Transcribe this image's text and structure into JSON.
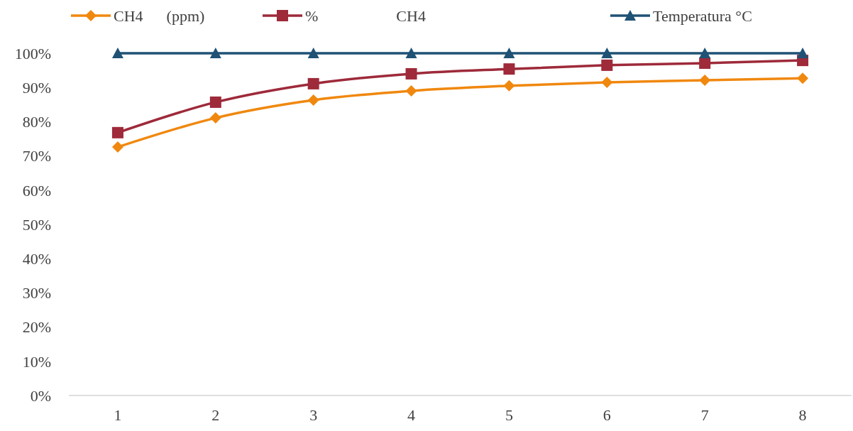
{
  "chart_data": {
    "type": "line",
    "categories": [
      "1",
      "2",
      "3",
      "4",
      "5",
      "6",
      "7",
      "8"
    ],
    "series": [
      {
        "name": "CH4      (ppm)",
        "color": "#f0880f",
        "marker": "diamond",
        "values": [
          72.6,
          81.1,
          86.3,
          89.0,
          90.5,
          91.5,
          92.1,
          92.7
        ]
      },
      {
        "name": "%                    CH4",
        "color": "#9e2a3a",
        "marker": "square",
        "values": [
          76.8,
          85.7,
          91.1,
          94.0,
          95.4,
          96.5,
          97.1,
          97.9
        ]
      },
      {
        "name": "Temperatura °C",
        "color": "#1f5275",
        "marker": "triangle",
        "values": [
          100,
          100,
          100,
          100,
          100,
          100,
          100,
          100
        ]
      }
    ],
    "ylim": [
      0,
      100
    ],
    "yticks": [
      {
        "value": 0,
        "label": "0%"
      },
      {
        "value": 10,
        "label": "10%"
      },
      {
        "value": 20,
        "label": "20%"
      },
      {
        "value": 30,
        "label": "30%"
      },
      {
        "value": 40,
        "label": "40%"
      },
      {
        "value": 50,
        "label": "50%"
      },
      {
        "value": 60,
        "label": "60%"
      },
      {
        "value": 70,
        "label": "70%"
      },
      {
        "value": 80,
        "label": "80%"
      },
      {
        "value": 90,
        "label": "90%"
      },
      {
        "value": 100,
        "label": "100%"
      }
    ],
    "grid": false,
    "legend": "top",
    "line_style": "solid"
  }
}
